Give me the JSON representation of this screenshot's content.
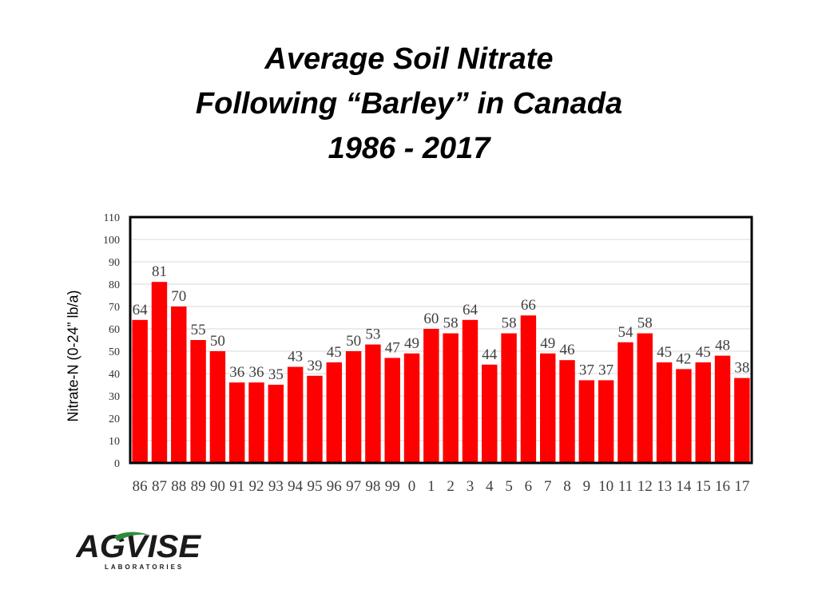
{
  "header": {
    "title_line1": "Average Soil Nitrate",
    "title_line2": "Following “Barley” in Canada",
    "title_line3": "1986 - 2017"
  },
  "logo": {
    "text": "AGVISE",
    "subtext": "LABORATORIES",
    "colors": {
      "dark": "#1a1a1a",
      "green": "#2e8b3c"
    }
  },
  "colors": {
    "bar": "#ff0000",
    "grid": "#d9d9d9",
    "frame": "#000000"
  },
  "chart_data": {
    "type": "bar",
    "title": "",
    "xlabel": "",
    "ylabel": "Nitrate-N (0-24” lb/a)",
    "ylim": [
      0,
      110
    ],
    "yticks": [
      0,
      10,
      20,
      30,
      40,
      50,
      60,
      70,
      80,
      90,
      100,
      110
    ],
    "grid": true,
    "categories": [
      "86",
      "87",
      "88",
      "89",
      "90",
      "91",
      "92",
      "93",
      "94",
      "95",
      "96",
      "97",
      "98",
      "99",
      "0",
      "1",
      "2",
      "3",
      "4",
      "5",
      "6",
      "7",
      "8",
      "9",
      "10",
      "11",
      "12",
      "13",
      "14",
      "15",
      "16",
      "17"
    ],
    "values": [
      64,
      81,
      70,
      55,
      50,
      36,
      36,
      35,
      43,
      39,
      45,
      50,
      53,
      47,
      49,
      60,
      58,
      64,
      44,
      58,
      66,
      49,
      46,
      37,
      37,
      54,
      58,
      45,
      42,
      45,
      48,
      38
    ]
  }
}
